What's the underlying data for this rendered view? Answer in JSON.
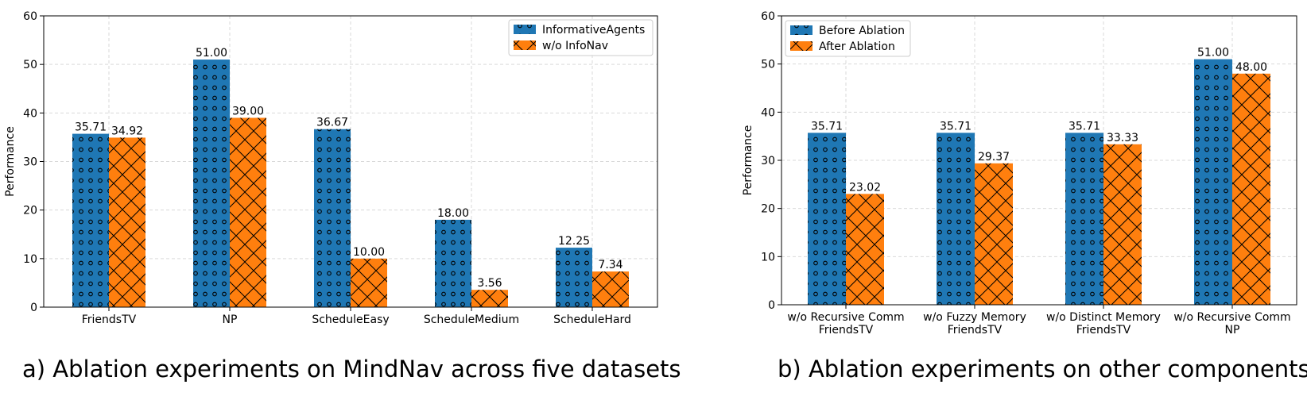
{
  "colors": {
    "series1": "#1f77b4",
    "series2": "#ff7f0e",
    "grid": "#d9d9d9"
  },
  "chart_data": [
    {
      "type": "bar",
      "ylabel": "Performance",
      "ylim": [
        0,
        60
      ],
      "yticks": [
        0,
        10,
        20,
        30,
        40,
        50,
        60
      ],
      "grid": true,
      "legend_position": "top-right",
      "caption": "a) Ablation experiments on MindNav across five datasets",
      "categories": [
        [
          "FriendsTV"
        ],
        [
          "NP"
        ],
        [
          "ScheduleEasy"
        ],
        [
          "ScheduleMedium"
        ],
        [
          "ScheduleHard"
        ]
      ],
      "series": [
        {
          "name": "InformativeAgents",
          "hatch": "circles",
          "values": [
            35.71,
            51.0,
            36.67,
            18.0,
            12.25
          ],
          "labels": [
            "35.71",
            "51.00",
            "36.67",
            "18.00",
            "12.25"
          ]
        },
        {
          "name": "w/o InfoNav",
          "hatch": "cross",
          "values": [
            34.92,
            39.0,
            10.0,
            3.56,
            7.34
          ],
          "labels": [
            "34.92",
            "39.00",
            "10.00",
            "3.56",
            "7.34"
          ]
        }
      ]
    },
    {
      "type": "bar",
      "ylabel": "Performance",
      "ylim": [
        0,
        60
      ],
      "yticks": [
        0,
        10,
        20,
        30,
        40,
        50,
        60
      ],
      "grid": true,
      "legend_position": "top-left",
      "caption": "b) Ablation experiments on other components",
      "categories": [
        [
          "w/o Recursive Comm",
          "FriendsTV"
        ],
        [
          "w/o Fuzzy Memory",
          "FriendsTV"
        ],
        [
          "w/o Distinct Memory",
          "FriendsTV"
        ],
        [
          "w/o Recursive Comm",
          "NP"
        ]
      ],
      "series": [
        {
          "name": "Before Ablation",
          "hatch": "circles",
          "values": [
            35.71,
            35.71,
            35.71,
            51.0
          ],
          "labels": [
            "35.71",
            "35.71",
            "35.71",
            "51.00"
          ]
        },
        {
          "name": "After Ablation",
          "hatch": "cross",
          "values": [
            23.02,
            29.37,
            33.33,
            48.0
          ],
          "labels": [
            "23.02",
            "29.37",
            "33.33",
            "48.00"
          ]
        }
      ]
    }
  ]
}
